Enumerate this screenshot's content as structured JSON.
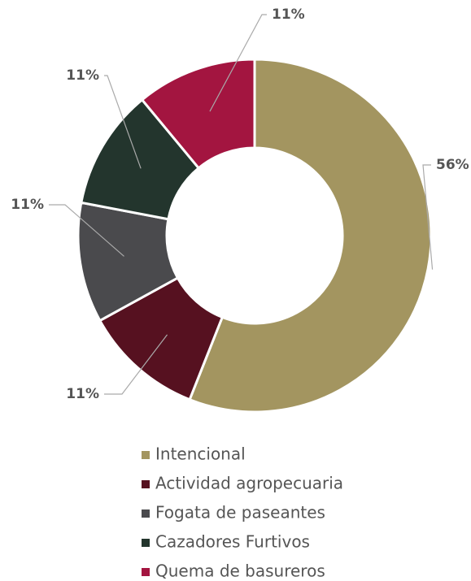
{
  "chart_data": {
    "type": "donut",
    "categories": [
      "Intencional",
      "Actividad agropecuaria",
      "Fogata de paseantes",
      "Cazadores Furtivos",
      "Quema de basureros"
    ],
    "values": [
      56,
      11,
      11,
      11,
      11
    ],
    "value_labels": [
      "56%",
      "11%",
      "11%",
      "11%",
      "11%"
    ],
    "colors": [
      "#a39560",
      "#561120",
      "#4a4a4d",
      "#23352d",
      "#a31540"
    ],
    "legend": "bottom"
  }
}
